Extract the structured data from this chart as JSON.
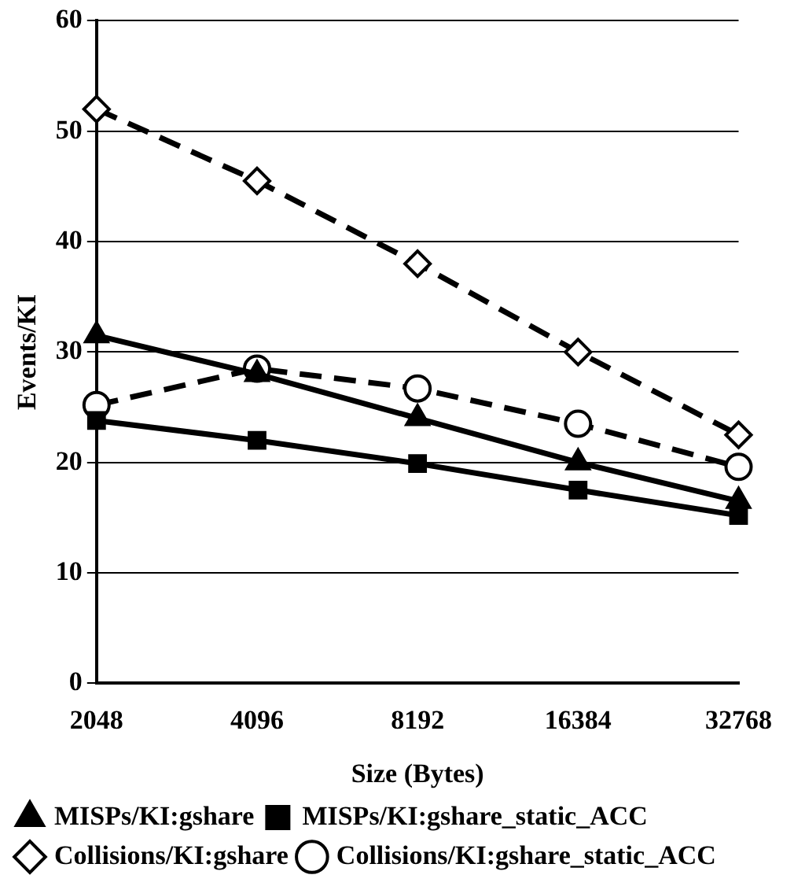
{
  "chart_data": {
    "type": "line",
    "xlabel": "Size (Bytes)",
    "ylabel": "Events/KI",
    "categories": [
      "2048",
      "4096",
      "8192",
      "16384",
      "32768"
    ],
    "series": [
      {
        "name": "MISPs/KI:gshare",
        "color": "#000000",
        "marker": "triangle",
        "line_style": "solid",
        "values": [
          31.5,
          28,
          24,
          20,
          16.5
        ]
      },
      {
        "name": "MISPs/KI:gshare_static_ACC",
        "color": "#000000",
        "marker": "square",
        "line_style": "solid",
        "values": [
          23.8,
          22,
          19.9,
          17.5,
          15.2
        ]
      },
      {
        "name": "Collisions/KI:gshare",
        "color": "#000000",
        "marker": "diamond",
        "line_style": "dashed",
        "values": [
          52,
          45.5,
          38,
          30,
          22.5
        ]
      },
      {
        "name": "Collisions/KI:gshare_static_ACC",
        "color": "#000000",
        "marker": "circle",
        "line_style": "dashed",
        "values": [
          25.2,
          28.5,
          26.7,
          23.5,
          19.6
        ]
      }
    ],
    "ylim": [
      0,
      60
    ],
    "yticks": [
      0,
      10,
      20,
      30,
      40,
      50,
      60
    ],
    "grid": "y",
    "legend": "bottom"
  }
}
